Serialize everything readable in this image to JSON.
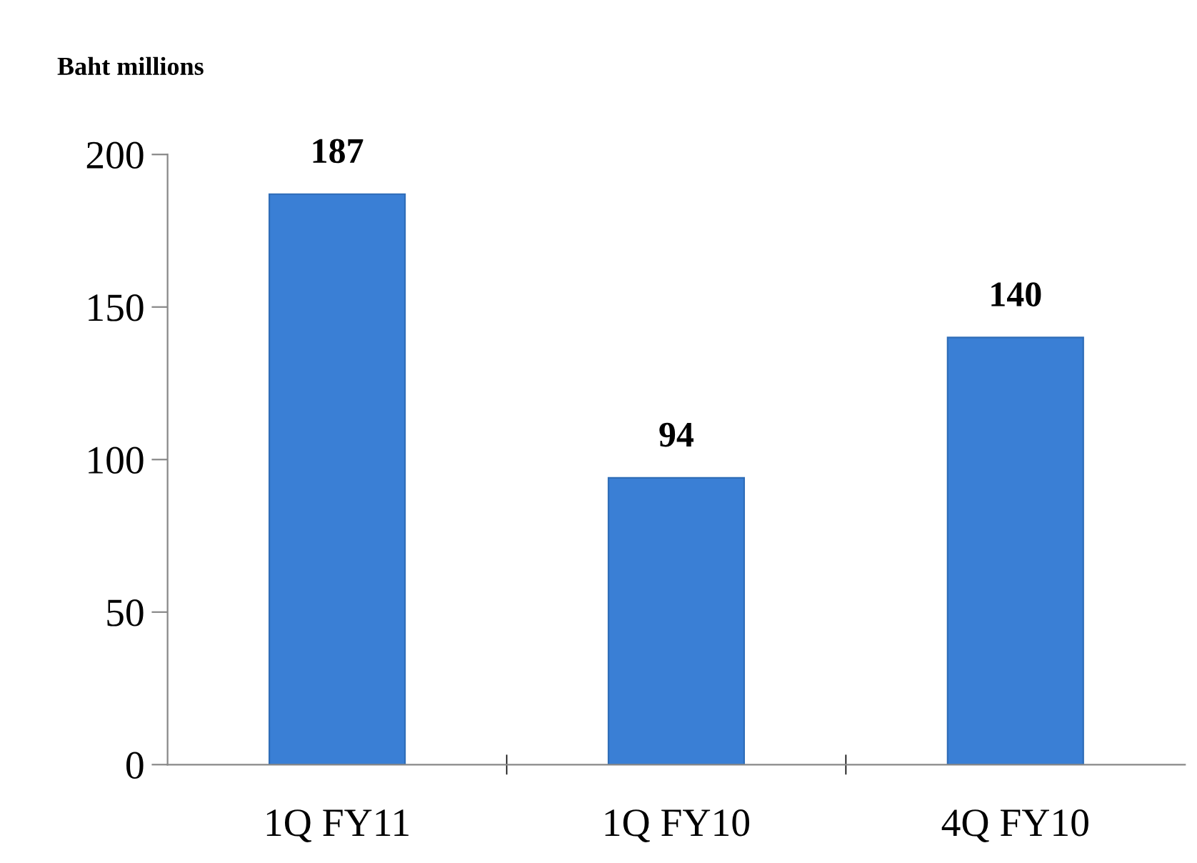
{
  "chart_data": {
    "type": "bar",
    "ylabel": "Baht millions",
    "categories": [
      "1Q FY11",
      "1Q FY10",
      "4Q FY10"
    ],
    "values": [
      187,
      94,
      140
    ],
    "color": "#3a7fd5",
    "ylim": [
      0,
      200
    ],
    "yticks": [
      0,
      50,
      100,
      150,
      200
    ],
    "grid": false,
    "data_labels": true
  }
}
